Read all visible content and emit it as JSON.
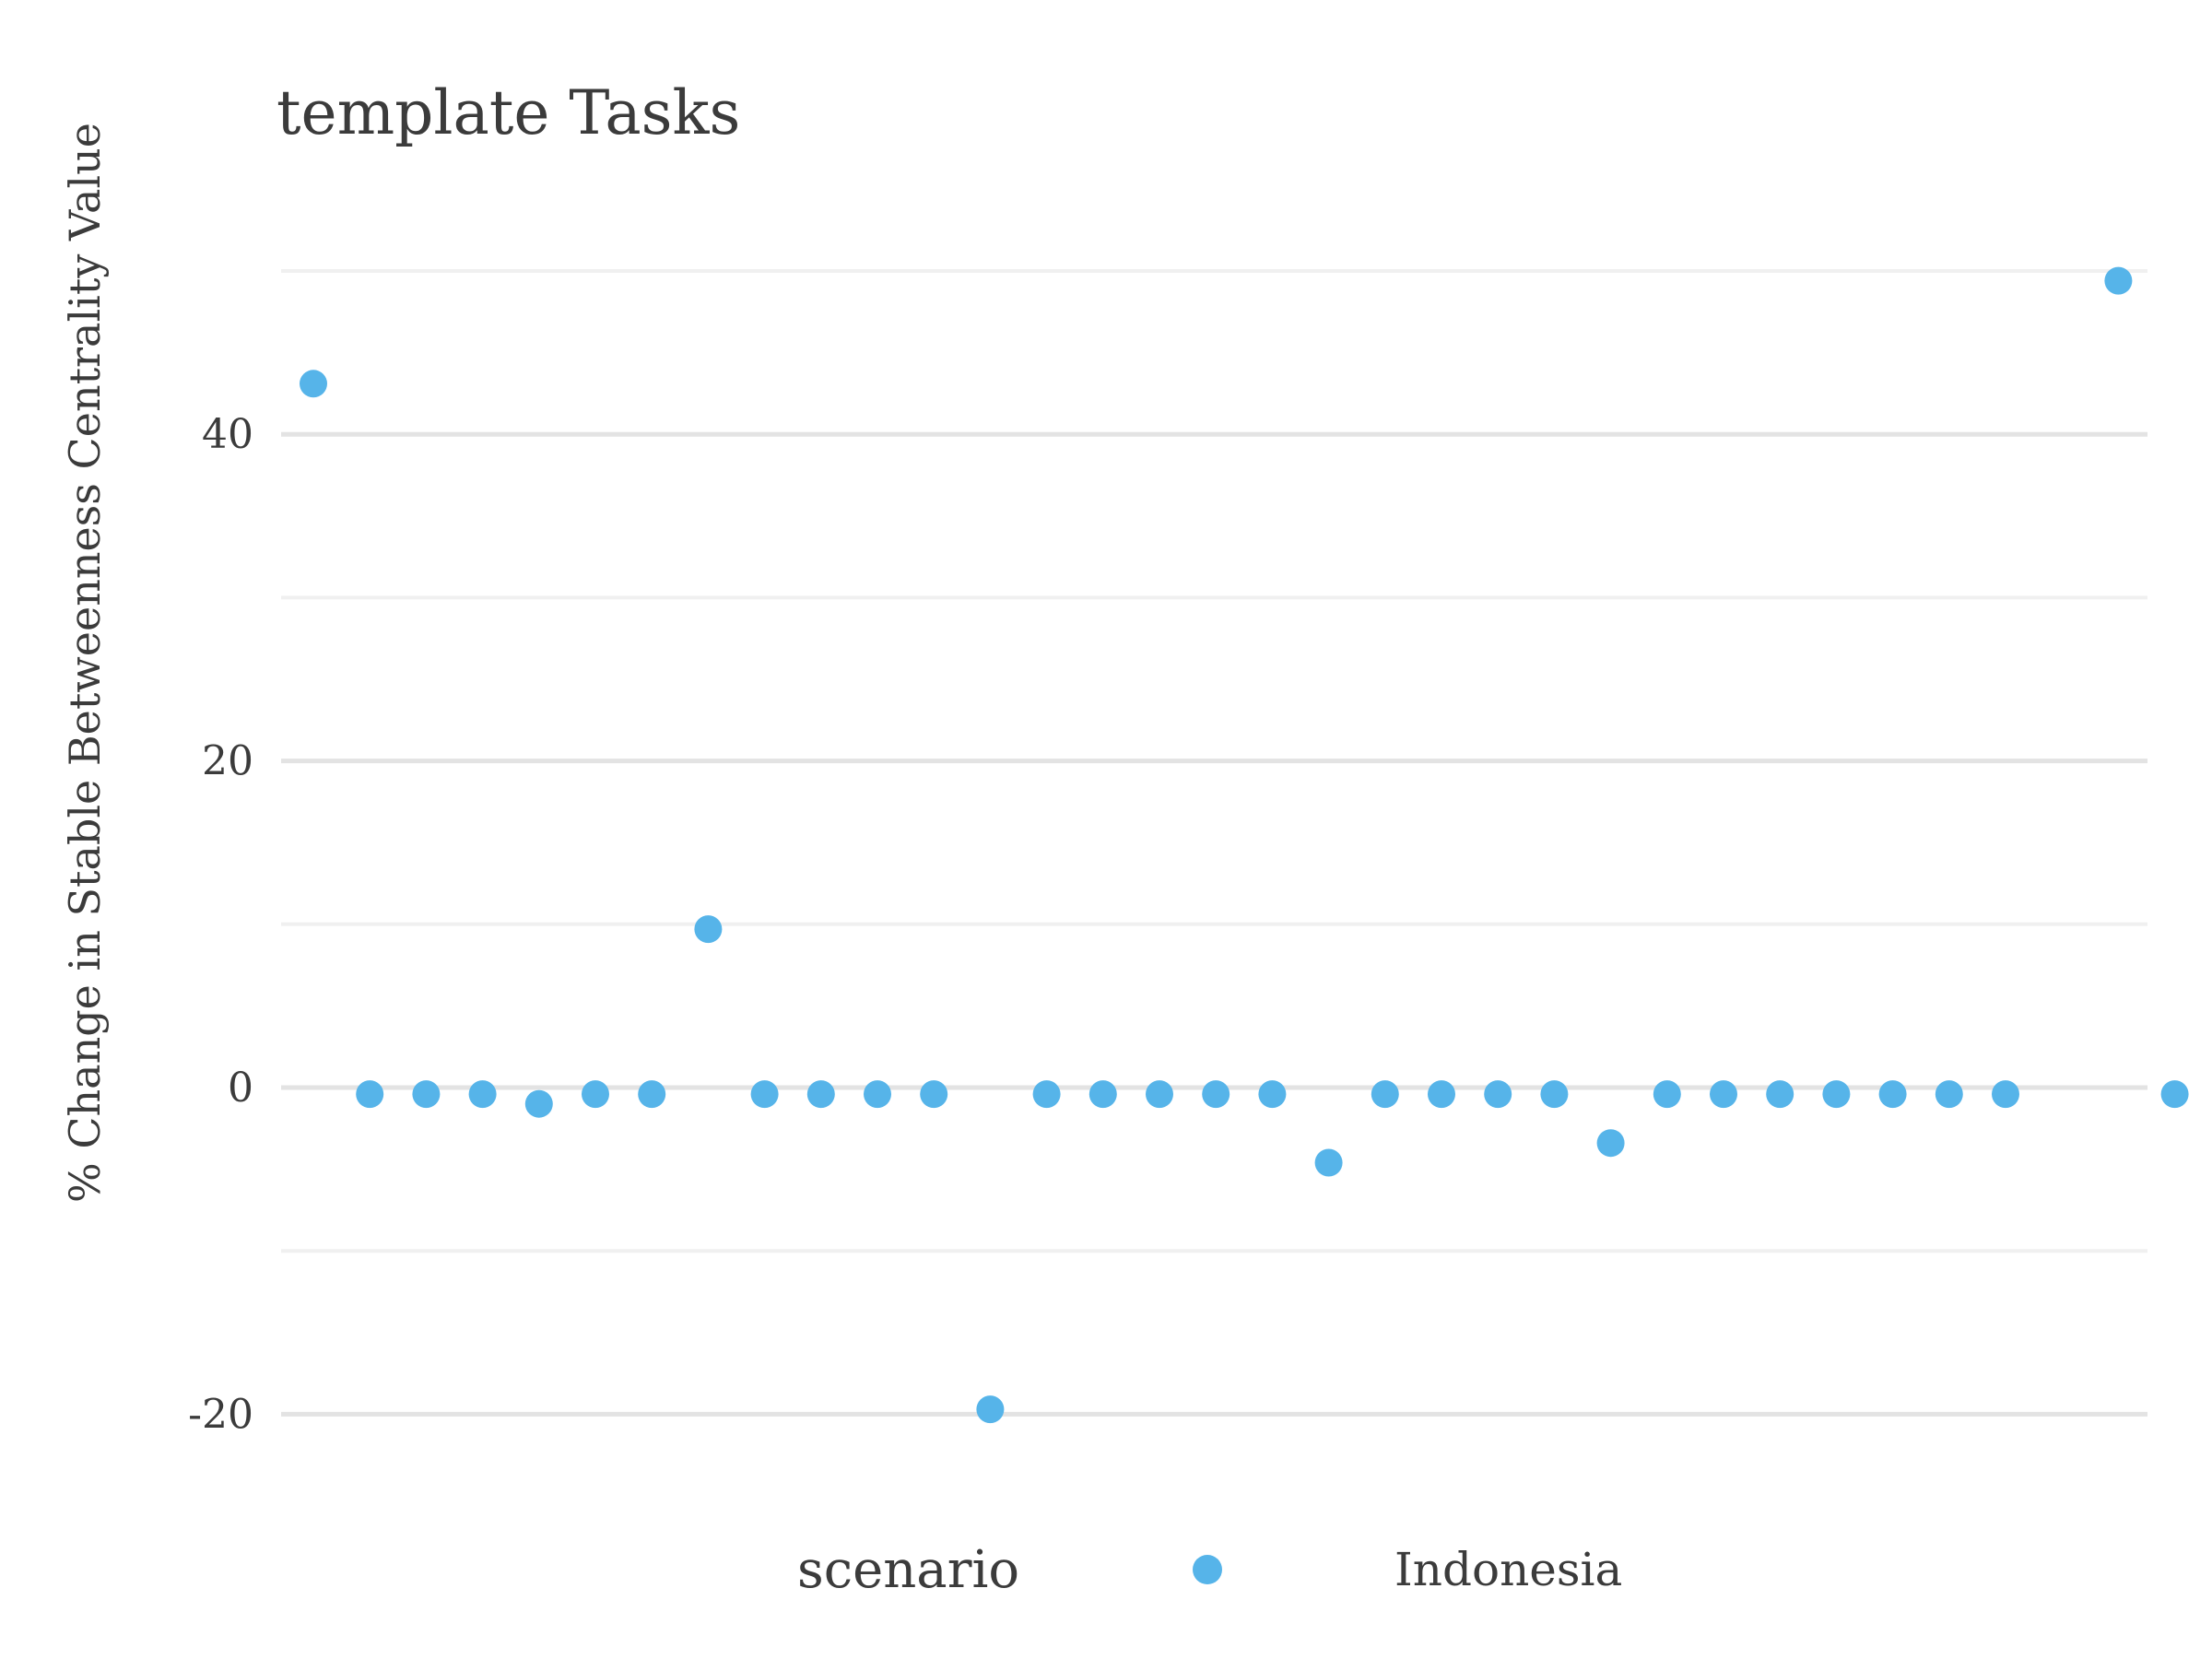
{
  "chart_data": {
    "type": "scatter",
    "title": "template Tasks",
    "xlabel": "",
    "ylabel": "% Change in Stable Betweenness Centrality Value",
    "ylim": [
      -25,
      52
    ],
    "yticks": [
      -20,
      0,
      20,
      40
    ],
    "ytick_labels": [
      "-20",
      "0",
      "20",
      "40"
    ],
    "minor_gridlines": [
      -10,
      10,
      30,
      50
    ],
    "grid": true,
    "x_tick_labels_visible": false,
    "legend": {
      "title": "scenario",
      "placement": "bottom"
    },
    "series": [
      {
        "name": "Indonesia",
        "color": "#56b4e9",
        "x": [
          1,
          2,
          3,
          4,
          5,
          6,
          7,
          8,
          9,
          10,
          11,
          12,
          13,
          14,
          15,
          16,
          17,
          18,
          19,
          20,
          21,
          22,
          23,
          24,
          25,
          26,
          27,
          28,
          29,
          30,
          31,
          32,
          33
        ],
        "y": [
          43.1,
          -0.4,
          -0.4,
          -0.4,
          -1.0,
          -0.4,
          -0.4,
          9.7,
          -0.4,
          -0.4,
          -0.4,
          -0.4,
          -19.7,
          -0.4,
          -0.4,
          -0.4,
          -0.4,
          -0.4,
          -4.6,
          -0.4,
          -0.4,
          -0.4,
          -0.4,
          -3.4,
          -0.4,
          -0.4,
          -0.4,
          -0.4,
          -0.4,
          -0.4,
          -0.4,
          49.4,
          -0.4
        ]
      }
    ],
    "missing_x": [
      32
    ]
  }
}
